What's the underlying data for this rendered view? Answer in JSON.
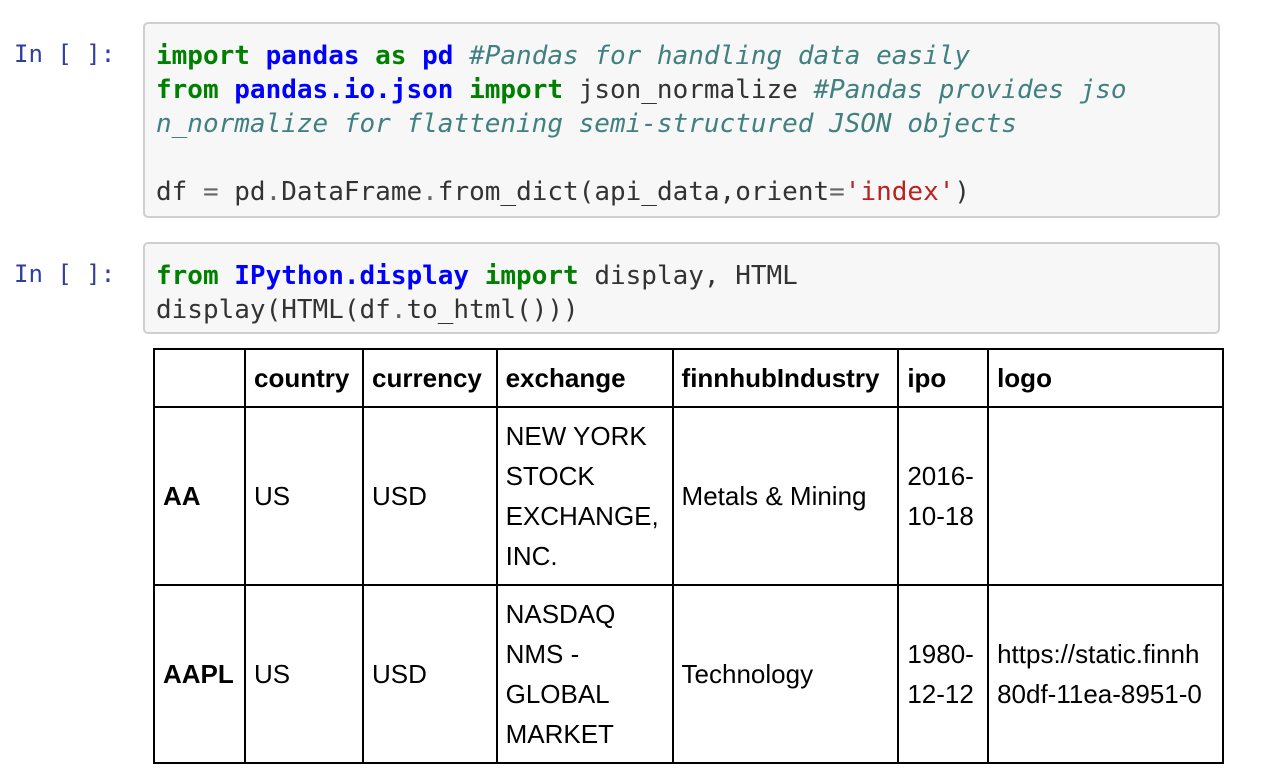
{
  "cells": [
    {
      "prompt": "In [ ]:",
      "code_lines": [
        [
          {
            "t": "import",
            "c": "kw"
          },
          {
            "t": " "
          },
          {
            "t": "pandas",
            "c": "nn"
          },
          {
            "t": " "
          },
          {
            "t": "as",
            "c": "kw"
          },
          {
            "t": " "
          },
          {
            "t": "pd",
            "c": "nn"
          },
          {
            "t": " "
          },
          {
            "t": "#Pandas for handling data easily",
            "c": "cm"
          }
        ],
        [
          {
            "t": "from",
            "c": "kw"
          },
          {
            "t": " "
          },
          {
            "t": "pandas.io.json",
            "c": "nn"
          },
          {
            "t": " "
          },
          {
            "t": "import",
            "c": "kw"
          },
          {
            "t": " json_normalize "
          },
          {
            "t": "#Pandas provides jso",
            "c": "cm"
          }
        ],
        [
          {
            "t": "n_normalize for flattening semi-structured JSON objects",
            "c": "cm"
          }
        ],
        [],
        [
          {
            "t": "df "
          },
          {
            "t": "=",
            "c": "op"
          },
          {
            "t": " pd"
          },
          {
            "t": ".",
            "c": "op"
          },
          {
            "t": "DataFrame"
          },
          {
            "t": ".",
            "c": "op"
          },
          {
            "t": "from_dict(api_data,orient"
          },
          {
            "t": "=",
            "c": "op"
          },
          {
            "t": "'index'",
            "c": "st"
          },
          {
            "t": ")"
          }
        ]
      ]
    },
    {
      "prompt": "In [ ]:",
      "code_lines": [
        [
          {
            "t": "from",
            "c": "kw"
          },
          {
            "t": " "
          },
          {
            "t": "IPython.display",
            "c": "nn"
          },
          {
            "t": " "
          },
          {
            "t": "import",
            "c": "kw"
          },
          {
            "t": " display, HTML"
          }
        ],
        [
          {
            "t": "display(HTML(df"
          },
          {
            "t": ".",
            "c": "op"
          },
          {
            "t": "to_html()))"
          }
        ]
      ]
    }
  ],
  "table": {
    "columns": [
      "",
      "country",
      "currency",
      "exchange",
      "finnhubIndustry",
      "ipo",
      "logo"
    ],
    "rows": [
      {
        "index": "AA",
        "country": "US",
        "currency": "USD",
        "exchange": [
          "NEW YORK",
          "STOCK",
          "EXCHANGE,",
          "INC."
        ],
        "finnhubIndustry": "Metals & Mining",
        "ipo": [
          "2016-",
          "10-18"
        ],
        "logo": []
      },
      {
        "index": "AAPL",
        "country": "US",
        "currency": "USD",
        "exchange": [
          "NASDAQ",
          "NMS -",
          "GLOBAL",
          "MARKET"
        ],
        "finnhubIndustry": "Technology",
        "ipo": [
          "1980-",
          "12-12"
        ],
        "logo": [
          "https://static.finnh",
          "80df-11ea-8951-0"
        ]
      }
    ]
  }
}
